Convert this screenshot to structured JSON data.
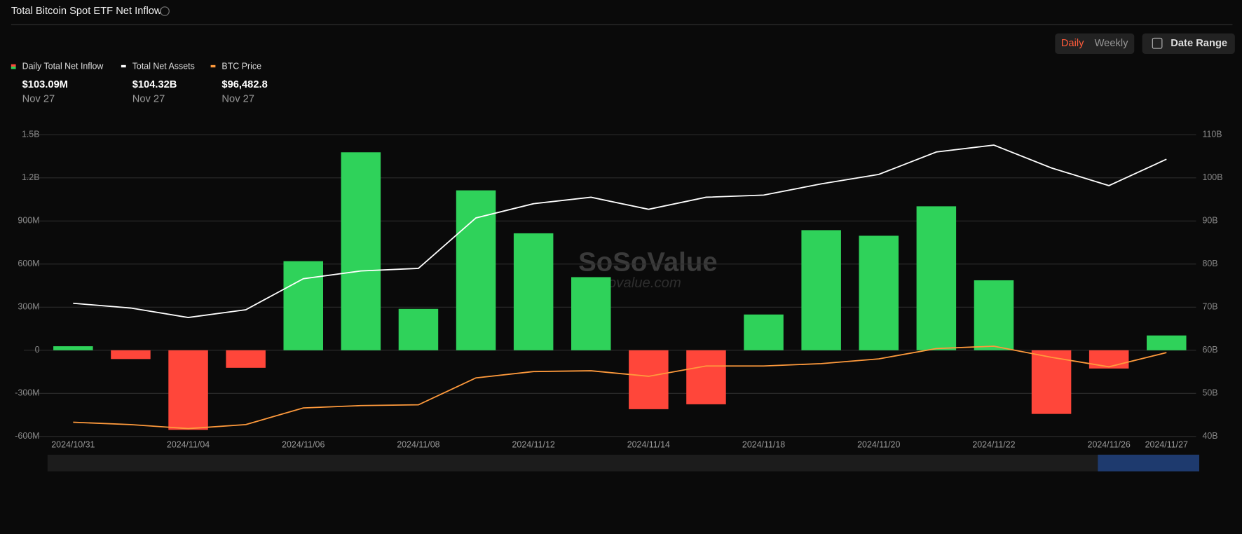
{
  "chart_data": {
    "type": "bar-line",
    "title": "Total Bitcoin Spot ETF Net Inflow",
    "controls": {
      "daily": "Daily",
      "weekly": "Weekly",
      "date_range": "Date Range"
    },
    "watermark": {
      "brand": "SoSoValue",
      "site": "sosovalue.com"
    },
    "categories": [
      "2024/10/31",
      null,
      "2024/11/04",
      null,
      "2024/11/06",
      null,
      "2024/11/08",
      null,
      "2024/11/12",
      null,
      "2024/11/14",
      null,
      "2024/11/18",
      null,
      "2024/11/20",
      null,
      "2024/11/22",
      null,
      "2024/11/26",
      "2024/11/27"
    ],
    "series": [
      {
        "name": "Daily Total Net Inflow",
        "type": "bar",
        "axis": "y",
        "colors": {
          "positive": "#2fd25a",
          "negative": "#ff463a"
        },
        "summary": {
          "value_label": "$103.09M",
          "date": "Nov 27"
        },
        "values": [
          28,
          -61,
          -554,
          -122,
          620,
          1378,
          288,
          1113,
          814,
          509,
          -410,
          -376,
          249,
          836,
          797,
          1002,
          487,
          -443,
          -127,
          103.09
        ]
      },
      {
        "name": "Total Net Assets",
        "type": "line",
        "axis": "y2",
        "color": "#ffffff",
        "summary": {
          "value_label": "$104.32B",
          "date": "Nov 27"
        },
        "values": [
          70.9,
          69.8,
          67.6,
          69.4,
          76.6,
          78.4,
          79.0,
          90.7,
          94.0,
          95.5,
          92.7,
          95.5,
          96.0,
          98.6,
          100.8,
          106.0,
          107.6,
          102.3,
          98.2,
          104.32
        ]
      },
      {
        "name": "BTC Price",
        "type": "line",
        "axis": "y3",
        "color": "#ff9a3c",
        "summary": {
          "value_label": "$96,482.8",
          "date": "Nov 27"
        },
        "values": [
          70100,
          69200,
          67700,
          69200,
          75500,
          76400,
          76700,
          86900,
          89300,
          89600,
          87500,
          91400,
          91400,
          92300,
          94100,
          98000,
          98900,
          94700,
          91100,
          96482.8
        ]
      }
    ],
    "ylim": [
      -600,
      1500
    ],
    "yticks": [
      {
        "value": -600,
        "label": "-600M"
      },
      {
        "value": -300,
        "label": "-300M"
      },
      0,
      {
        "value": 300,
        "label": "300M"
      },
      {
        "value": 600,
        "label": "600M"
      },
      {
        "value": 900,
        "label": "900M"
      },
      {
        "value": 1200,
        "label": "1.2B"
      },
      {
        "value": 1500,
        "label": "1.5B"
      }
    ],
    "y2lim": [
      40,
      110
    ],
    "y2ticks": [
      {
        "value": 40,
        "label": "40B"
      },
      {
        "value": 50,
        "label": "50B"
      },
      {
        "value": 60,
        "label": "60B"
      },
      {
        "value": 70,
        "label": "70B"
      },
      {
        "value": 80,
        "label": "80B"
      },
      {
        "value": 90,
        "label": "90B"
      },
      {
        "value": 100,
        "label": "100B"
      },
      {
        "value": 110,
        "label": "110B"
      }
    ],
    "y3lim": [
      64700,
      179000
    ],
    "grid": true
  }
}
